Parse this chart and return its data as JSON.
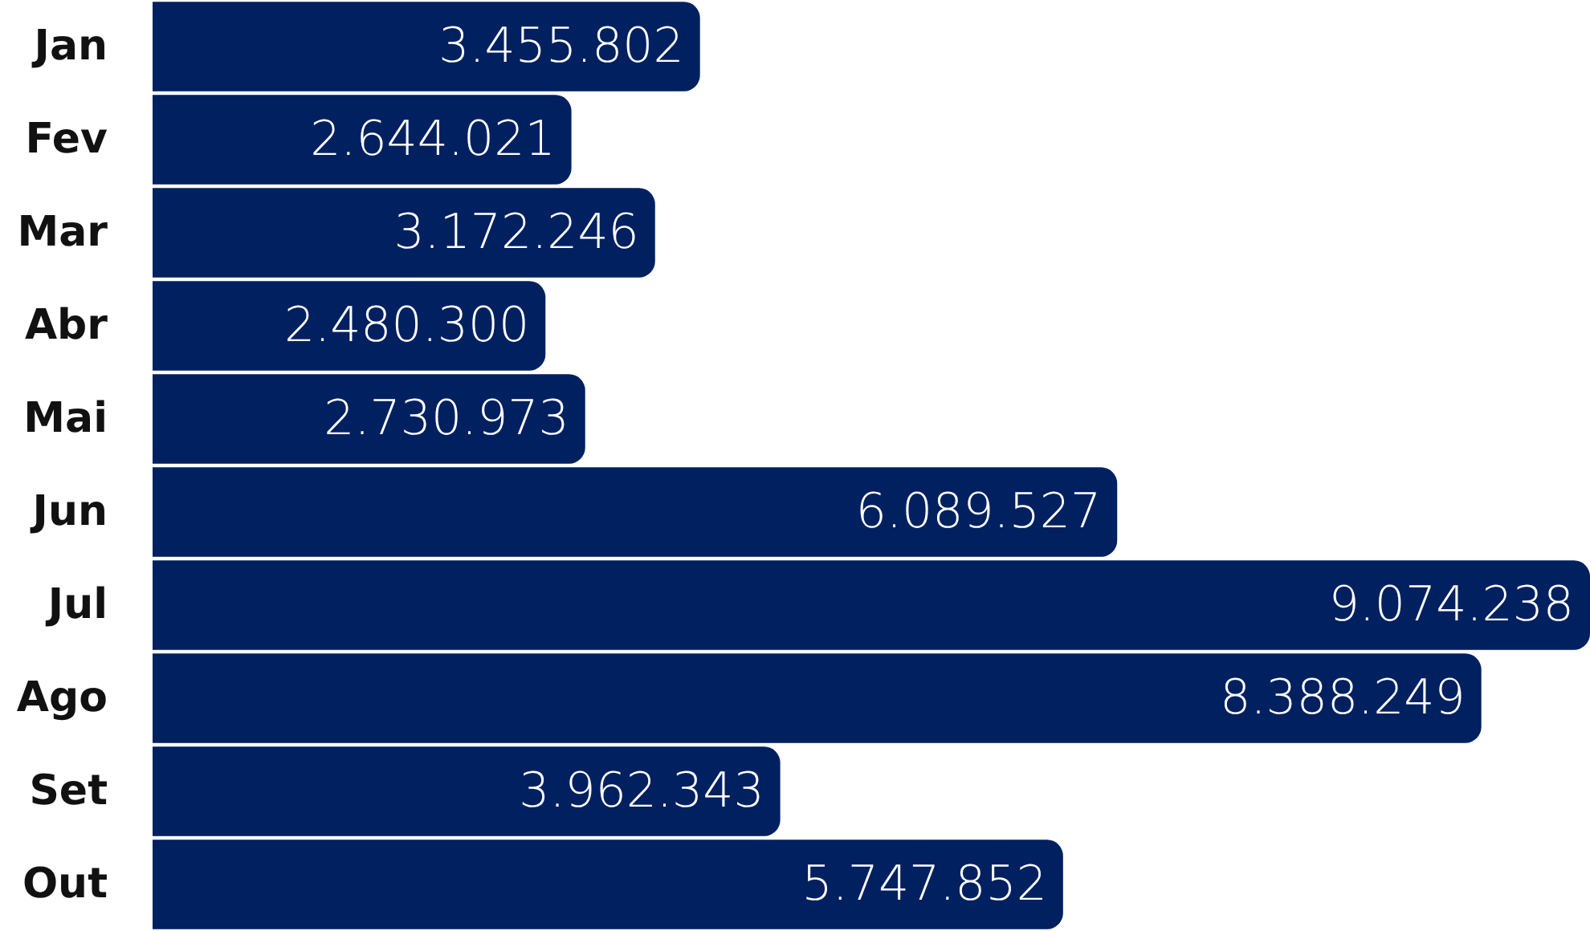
{
  "chart_data": {
    "type": "bar",
    "orientation": "horizontal",
    "categories": [
      "Jan",
      "Fev",
      "Mar",
      "Abr",
      "Mai",
      "Jun",
      "Jul",
      "Ago",
      "Set",
      "Out"
    ],
    "values": [
      3455802,
      2644021,
      3172246,
      2480300,
      2730973,
      6089527,
      9074238,
      8388249,
      3962343,
      5747852
    ],
    "value_labels": [
      "3.455.802",
      "2.644.021",
      "3.172.246",
      "2.480.300",
      "2.730.973",
      "6.089.527",
      "9.074.238",
      "8.388.249",
      "3.962.343",
      "5.747.852"
    ],
    "color": "#002060",
    "tick_labels": "y"
  }
}
